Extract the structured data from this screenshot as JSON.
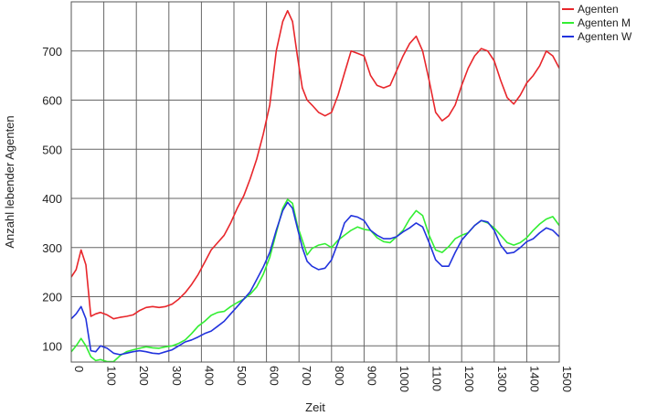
{
  "chart_data": {
    "type": "line",
    "title": "",
    "xlabel": "Zeit",
    "ylabel": "Anzahl lebender Agenten",
    "xlim": [
      0,
      1500
    ],
    "ylim": [
      67,
      800
    ],
    "x_ticks": [
      0,
      100,
      200,
      300,
      400,
      500,
      600,
      700,
      800,
      900,
      1000,
      1100,
      1200,
      1300,
      1400,
      1500
    ],
    "x_tick_labels": [
      "0",
      "100",
      "200",
      "300",
      "400",
      "500",
      "600",
      "700",
      "800",
      "900",
      "1000",
      "1100",
      "1200",
      "1300",
      "1400",
      "1500"
    ],
    "y_ticks": [
      100,
      200,
      300,
      400,
      500,
      600,
      700
    ],
    "y_tick_labels": [
      "100",
      "200",
      "300",
      "400",
      "500",
      "600",
      "700"
    ],
    "grid": true,
    "legend_position": "top-right",
    "series": [
      {
        "name": "Agenten",
        "color": "#e8262b",
        "x": [
          0,
          15,
          30,
          45,
          60,
          75,
          90,
          110,
          130,
          150,
          170,
          190,
          210,
          230,
          250,
          270,
          290,
          310,
          330,
          350,
          370,
          390,
          410,
          430,
          450,
          470,
          490,
          510,
          530,
          550,
          570,
          590,
          610,
          630,
          650,
          665,
          680,
          695,
          710,
          725,
          740,
          760,
          780,
          800,
          820,
          840,
          860,
          880,
          900,
          920,
          940,
          960,
          980,
          1000,
          1020,
          1040,
          1060,
          1080,
          1100,
          1120,
          1140,
          1160,
          1180,
          1200,
          1220,
          1240,
          1260,
          1280,
          1300,
          1320,
          1340,
          1360,
          1380,
          1400,
          1420,
          1440,
          1460,
          1480,
          1500
        ],
        "values": [
          240,
          255,
          295,
          265,
          160,
          165,
          168,
          163,
          155,
          158,
          160,
          163,
          172,
          178,
          180,
          178,
          180,
          185,
          195,
          208,
          225,
          245,
          270,
          295,
          310,
          325,
          350,
          380,
          405,
          440,
          480,
          530,
          590,
          700,
          760,
          782,
          760,
          690,
          625,
          600,
          590,
          575,
          568,
          575,
          610,
          655,
          700,
          695,
          690,
          650,
          630,
          625,
          630,
          660,
          690,
          715,
          730,
          700,
          640,
          575,
          558,
          568,
          590,
          630,
          665,
          690,
          705,
          700,
          680,
          640,
          605,
          592,
          610,
          635,
          650,
          670,
          700,
          690,
          665
        ]
      },
      {
        "name": "Agenten M",
        "color": "#33ee33",
        "x": [
          0,
          15,
          30,
          45,
          60,
          75,
          90,
          110,
          130,
          150,
          170,
          190,
          210,
          230,
          250,
          270,
          290,
          310,
          330,
          350,
          370,
          390,
          410,
          430,
          450,
          470,
          490,
          510,
          530,
          550,
          570,
          590,
          610,
          630,
          650,
          665,
          680,
          695,
          710,
          725,
          740,
          760,
          780,
          800,
          820,
          840,
          860,
          880,
          900,
          920,
          940,
          960,
          980,
          1000,
          1020,
          1040,
          1060,
          1080,
          1100,
          1120,
          1140,
          1160,
          1180,
          1200,
          1220,
          1240,
          1260,
          1280,
          1300,
          1320,
          1340,
          1360,
          1380,
          1400,
          1420,
          1440,
          1460,
          1480,
          1500
        ],
        "values": [
          88,
          100,
          115,
          100,
          78,
          70,
          72,
          68,
          68,
          80,
          88,
          92,
          95,
          98,
          96,
          95,
          98,
          100,
          105,
          112,
          125,
          140,
          150,
          162,
          168,
          170,
          180,
          188,
          195,
          205,
          220,
          245,
          280,
          330,
          380,
          398,
          390,
          345,
          315,
          285,
          298,
          305,
          308,
          300,
          315,
          325,
          335,
          342,
          337,
          335,
          320,
          312,
          310,
          322,
          335,
          358,
          375,
          365,
          325,
          295,
          290,
          302,
          318,
          325,
          330,
          345,
          355,
          350,
          340,
          325,
          310,
          305,
          310,
          320,
          335,
          348,
          358,
          363,
          345
        ]
      },
      {
        "name": "Agenten W",
        "color": "#2233dd",
        "x": [
          0,
          15,
          30,
          45,
          60,
          75,
          90,
          110,
          130,
          150,
          170,
          190,
          210,
          230,
          250,
          270,
          290,
          310,
          330,
          350,
          370,
          390,
          410,
          430,
          450,
          470,
          490,
          510,
          530,
          550,
          570,
          590,
          610,
          630,
          650,
          665,
          680,
          695,
          710,
          725,
          740,
          760,
          780,
          800,
          820,
          840,
          860,
          880,
          900,
          920,
          940,
          960,
          980,
          1000,
          1020,
          1040,
          1060,
          1080,
          1100,
          1120,
          1140,
          1160,
          1180,
          1200,
          1220,
          1240,
          1260,
          1280,
          1300,
          1320,
          1340,
          1360,
          1380,
          1400,
          1420,
          1440,
          1460,
          1480,
          1500
        ],
        "values": [
          155,
          165,
          180,
          155,
          90,
          88,
          100,
          95,
          85,
          82,
          85,
          88,
          90,
          88,
          85,
          84,
          88,
          92,
          100,
          108,
          112,
          118,
          125,
          130,
          140,
          150,
          165,
          180,
          195,
          210,
          235,
          260,
          290,
          335,
          375,
          392,
          380,
          340,
          300,
          272,
          262,
          255,
          258,
          275,
          310,
          350,
          365,
          362,
          355,
          335,
          325,
          318,
          318,
          322,
          332,
          340,
          350,
          342,
          310,
          275,
          262,
          262,
          290,
          315,
          330,
          345,
          355,
          352,
          335,
          305,
          288,
          290,
          300,
          312,
          318,
          330,
          340,
          335,
          322
        ]
      }
    ]
  }
}
